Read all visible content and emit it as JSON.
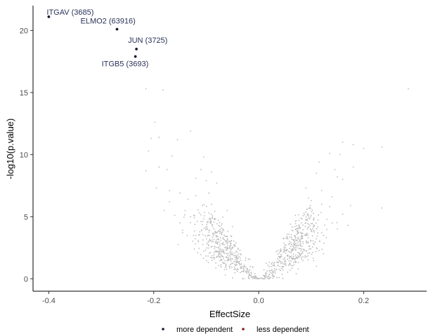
{
  "chart_data": {
    "type": "scatter",
    "xlabel": "EffectSize",
    "ylabel": "-log10(p.value)",
    "xlim": [
      -0.43,
      0.32
    ],
    "ylim": [
      -1.0,
      22.0
    ],
    "x_ticks": [
      -0.4,
      -0.2,
      0.0,
      0.2
    ],
    "x_tick_labels": [
      "-0.4",
      "-0.2",
      "0.0",
      "0.2"
    ],
    "y_ticks": [
      0,
      5,
      10,
      15,
      20
    ],
    "y_tick_labels": [
      "0",
      "5",
      "10",
      "15",
      "20"
    ],
    "grid": false,
    "legend_position": "bottom",
    "legend": [
      {
        "label": "more dependent",
        "color": "#1a1a2e"
      },
      {
        "label": "less dependent",
        "color": "#8b1a1a"
      }
    ],
    "highlight_color": "#1a1a2e",
    "background_color": "#bdbdbd",
    "highlighted_points": [
      {
        "label": "ITGAV (3685)",
        "x": -0.4,
        "y": 21.1
      },
      {
        "label": "ELMO2 (63916)",
        "x": -0.27,
        "y": 20.1
      },
      {
        "label": "JUN (3725)",
        "x": -0.233,
        "y": 18.5
      },
      {
        "label": "ITGB5 (3693)",
        "x": -0.235,
        "y": 17.9
      }
    ],
    "background_points": [
      [
        -0.215,
        15.3
      ],
      [
        -0.182,
        15.2
      ],
      [
        0.285,
        15.3
      ],
      [
        -0.198,
        12.6
      ],
      [
        -0.13,
        11.9
      ],
      [
        -0.205,
        11.3
      ],
      [
        -0.19,
        11.4
      ],
      [
        -0.155,
        11.2
      ],
      [
        0.16,
        11.0
      ],
      [
        0.18,
        10.8
      ],
      [
        0.235,
        10.6
      ],
      [
        0.2,
        10.5
      ],
      [
        -0.21,
        10.3
      ],
      [
        -0.105,
        9.8
      ],
      [
        -0.165,
        9.9
      ],
      [
        0.135,
        10.1
      ],
      [
        0.155,
        10.0
      ],
      [
        0.115,
        9.4
      ],
      [
        0.18,
        9.0
      ],
      [
        0.145,
        8.8
      ],
      [
        -0.215,
        8.7
      ],
      [
        -0.19,
        9.0
      ],
      [
        -0.175,
        8.8
      ],
      [
        -0.11,
        8.8
      ],
      [
        -0.09,
        8.6
      ],
      [
        -0.12,
        8.1
      ],
      [
        -0.1,
        7.9
      ],
      [
        -0.08,
        7.7
      ],
      [
        0.11,
        8.5
      ],
      [
        0.15,
        8.2
      ],
      [
        0.16,
        8.0
      ],
      [
        -0.195,
        7.3
      ],
      [
        -0.17,
        7.1
      ],
      [
        -0.15,
        6.9
      ],
      [
        0.09,
        7.3
      ],
      [
        0.12,
        7.1
      ],
      [
        0.14,
        6.6
      ],
      [
        -0.17,
        6.2
      ],
      [
        -0.18,
        5.5
      ],
      [
        -0.16,
        5.1
      ],
      [
        0.1,
        6.3
      ],
      [
        0.12,
        6.0
      ],
      [
        0.135,
        5.8
      ],
      [
        0.175,
        5.9
      ],
      [
        0.235,
        5.7
      ],
      [
        0.16,
        5.2
      ],
      [
        0.13,
        4.8
      ],
      [
        -0.135,
        6.4
      ],
      [
        -0.12,
        6.7
      ],
      [
        -0.095,
        6.9
      ],
      [
        -0.09,
        6.0
      ],
      [
        -0.14,
        5.5
      ],
      [
        -0.13,
        5.0
      ],
      [
        -0.11,
        4.6
      ],
      [
        0.095,
        6.5
      ],
      [
        0.105,
        4.9
      ],
      [
        0.14,
        4.5
      ],
      [
        0.17,
        4.3
      ],
      [
        0.15,
        4.0
      ],
      [
        0.12,
        3.7
      ],
      [
        -0.15,
        4.5
      ],
      [
        -0.145,
        3.9
      ],
      [
        -0.06,
        5.5
      ],
      [
        -0.05,
        4.2
      ],
      [
        0.07,
        5.1
      ],
      [
        0.06,
        4.4
      ]
    ],
    "cluster_left_center": [
      -0.07,
      2.6
    ],
    "cluster_right_center": [
      0.07,
      2.6
    ],
    "title": ""
  }
}
